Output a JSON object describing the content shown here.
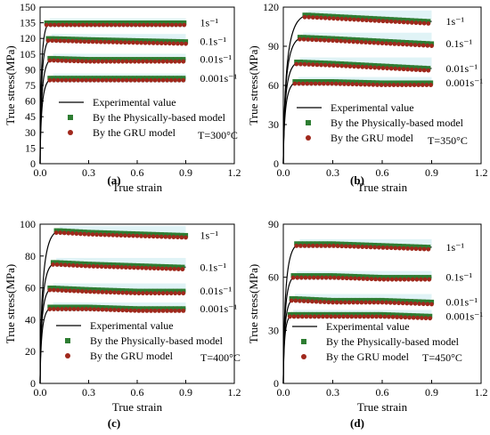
{
  "chart_data": [
    {
      "type": "line",
      "panel_label": "(a)",
      "temperature": "T=300°C",
      "xlabel": "True strain",
      "ylabel": "True stress(MPa)",
      "xlim": [
        0,
        1.2
      ],
      "ylim": [
        0,
        150
      ],
      "xticks": [
        "0.0",
        "0.3",
        "0.6",
        "0.9",
        "1.2"
      ],
      "yticks": [
        "0",
        "15",
        "30",
        "45",
        "60",
        "75",
        "90",
        "105",
        "120",
        "135",
        "150"
      ],
      "legend": [
        "Experimental value",
        "By the Physically-based model",
        "By the GRU model"
      ],
      "series": [
        {
          "name": "1s⁻¹",
          "peak_strain": 0.06,
          "points": [
            [
              0.06,
              135
            ],
            [
              0.3,
              135
            ],
            [
              0.6,
              135
            ],
            [
              0.9,
              135
            ]
          ]
        },
        {
          "name": "0.1s⁻¹",
          "peak_strain": 0.07,
          "points": [
            [
              0.07,
              120
            ],
            [
              0.3,
              119
            ],
            [
              0.6,
              118
            ],
            [
              0.9,
              117
            ]
          ]
        },
        {
          "name": "0.01s⁻¹",
          "peak_strain": 0.08,
          "points": [
            [
              0.08,
              101
            ],
            [
              0.3,
              100
            ],
            [
              0.6,
              100
            ],
            [
              0.9,
              100
            ]
          ]
        },
        {
          "name": "0.001s⁻¹",
          "peak_strain": 0.08,
          "points": [
            [
              0.08,
              82
            ],
            [
              0.3,
              82
            ],
            [
              0.6,
              82
            ],
            [
              0.9,
              82
            ]
          ]
        }
      ]
    },
    {
      "type": "line",
      "panel_label": "(b)",
      "temperature": "T=350°C",
      "xlabel": "True strain",
      "ylabel": "True stress(MPa)",
      "xlim": [
        0,
        1.2
      ],
      "ylim": [
        0,
        120
      ],
      "xticks": [
        "0.0",
        "0.3",
        "0.6",
        "0.9",
        "1.2"
      ],
      "yticks": [
        "0",
        "30",
        "60",
        "90",
        "120"
      ],
      "legend": [
        "Experimental value",
        "By the  Physically-based model",
        "By the GRU model"
      ],
      "series": [
        {
          "name": "1s⁻¹",
          "peak_strain": 0.15,
          "points": [
            [
              0.15,
              114
            ],
            [
              0.3,
              113
            ],
            [
              0.6,
              111
            ],
            [
              0.9,
              109
            ]
          ]
        },
        {
          "name": "0.1s⁻¹",
          "peak_strain": 0.12,
          "points": [
            [
              0.12,
              97
            ],
            [
              0.3,
              96
            ],
            [
              0.6,
              94
            ],
            [
              0.9,
              92
            ]
          ]
        },
        {
          "name": "0.01s⁻¹",
          "peak_strain": 0.1,
          "points": [
            [
              0.1,
              78
            ],
            [
              0.3,
              77
            ],
            [
              0.6,
              75
            ],
            [
              0.9,
              73
            ]
          ]
        },
        {
          "name": "0.001s⁻¹",
          "peak_strain": 0.09,
          "points": [
            [
              0.09,
              63
            ],
            [
              0.3,
              63
            ],
            [
              0.6,
              62
            ],
            [
              0.9,
              62
            ]
          ]
        }
      ]
    },
    {
      "type": "line",
      "panel_label": "(c)",
      "temperature": "T=400°C",
      "xlabel": "True strain",
      "ylabel": "True stress(MPa)",
      "xlim": [
        0,
        1.2
      ],
      "ylim": [
        0,
        100
      ],
      "xticks": [
        "0.0",
        "0.3",
        "0.6",
        "0.9",
        "1.2"
      ],
      "yticks": [
        "0",
        "20",
        "40",
        "60",
        "80",
        "100"
      ],
      "legend": [
        "Experimental value",
        "By the  Physically-based model",
        "By the GRU model"
      ],
      "series": [
        {
          "name": "1s⁻¹",
          "peak_strain": 0.12,
          "points": [
            [
              0.12,
              96
            ],
            [
              0.3,
              95
            ],
            [
              0.6,
              94
            ],
            [
              0.9,
              93
            ]
          ]
        },
        {
          "name": "0.1s⁻¹",
          "peak_strain": 0.1,
          "points": [
            [
              0.1,
              76
            ],
            [
              0.3,
              75
            ],
            [
              0.6,
              74
            ],
            [
              0.9,
              73
            ]
          ]
        },
        {
          "name": "0.01s⁻¹",
          "peak_strain": 0.08,
          "points": [
            [
              0.08,
              60
            ],
            [
              0.3,
              59
            ],
            [
              0.6,
              58
            ],
            [
              0.9,
              58
            ]
          ]
        },
        {
          "name": "0.001s⁻¹",
          "peak_strain": 0.08,
          "points": [
            [
              0.08,
              48
            ],
            [
              0.3,
              48
            ],
            [
              0.6,
              47
            ],
            [
              0.9,
              47
            ]
          ]
        }
      ]
    },
    {
      "type": "line",
      "panel_label": "(d)",
      "temperature": "T=450°C",
      "xlabel": "True strain",
      "ylabel": "True stress(MPa)",
      "xlim": [
        0,
        1.2
      ],
      "ylim": [
        0,
        90
      ],
      "xticks": [
        "0.0",
        "0.3",
        "0.6",
        "0.9",
        "1.2"
      ],
      "yticks": [
        "0",
        "30",
        "60",
        "90"
      ],
      "legend": [
        "Experimental value",
        "By the  Physically-based model",
        "By the GRU model"
      ],
      "series": [
        {
          "name": "1s⁻¹",
          "peak_strain": 0.1,
          "points": [
            [
              0.1,
              79
            ],
            [
              0.3,
              79
            ],
            [
              0.6,
              78
            ],
            [
              0.9,
              77
            ]
          ]
        },
        {
          "name": "0.1s⁻¹",
          "peak_strain": 0.08,
          "points": [
            [
              0.08,
              61
            ],
            [
              0.3,
              61
            ],
            [
              0.6,
              60
            ],
            [
              0.9,
              60
            ]
          ]
        },
        {
          "name": "0.01s⁻¹",
          "peak_strain": 0.07,
          "points": [
            [
              0.07,
              48
            ],
            [
              0.3,
              47
            ],
            [
              0.6,
              47
            ],
            [
              0.9,
              46
            ]
          ]
        },
        {
          "name": "0.001s⁻¹",
          "peak_strain": 0.06,
          "points": [
            [
              0.06,
              39
            ],
            [
              0.3,
              39
            ],
            [
              0.6,
              39
            ],
            [
              0.9,
              38
            ]
          ]
        }
      ]
    }
  ],
  "colors": {
    "experimental": "#000000",
    "physical_model": "#2e7d32",
    "gru_model": "#a0281c",
    "band": "#d8f0f4"
  }
}
